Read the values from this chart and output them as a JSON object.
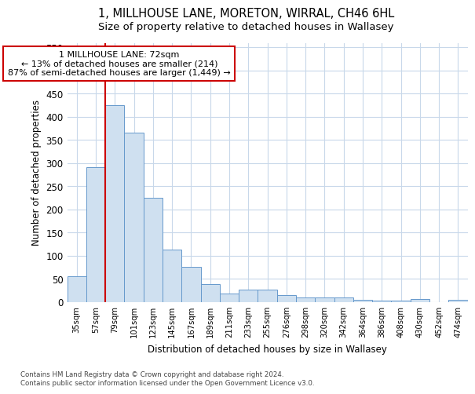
{
  "title": "1, MILLHOUSE LANE, MORETON, WIRRAL, CH46 6HL",
  "subtitle": "Size of property relative to detached houses in Wallasey",
  "xlabel": "Distribution of detached houses by size in Wallasey",
  "ylabel": "Number of detached properties",
  "categories": [
    "35sqm",
    "57sqm",
    "79sqm",
    "101sqm",
    "123sqm",
    "145sqm",
    "167sqm",
    "189sqm",
    "211sqm",
    "233sqm",
    "255sqm",
    "276sqm",
    "298sqm",
    "320sqm",
    "342sqm",
    "364sqm",
    "386sqm",
    "408sqm",
    "430sqm",
    "452sqm",
    "474sqm"
  ],
  "values": [
    55,
    291,
    425,
    365,
    225,
    113,
    76,
    39,
    17,
    27,
    27,
    14,
    9,
    9,
    10,
    5,
    3,
    2,
    6,
    0,
    4
  ],
  "bar_color": "#cfe0f0",
  "bar_edge_color": "#6699cc",
  "bar_edge_width": 0.7,
  "marker_index": 2,
  "marker_line_color": "#cc0000",
  "annotation_line1": "1 MILLHOUSE LANE: 72sqm",
  "annotation_line2": "← 13% of detached houses are smaller (214)",
  "annotation_line3": "87% of semi-detached houses are larger (1,449) →",
  "annotation_box_color": "#ffffff",
  "annotation_box_edge": "#cc0000",
  "ylim": [
    0,
    560
  ],
  "yticks": [
    0,
    50,
    100,
    150,
    200,
    250,
    300,
    350,
    400,
    450,
    500,
    550
  ],
  "footnote1": "Contains HM Land Registry data © Crown copyright and database right 2024.",
  "footnote2": "Contains public sector information licensed under the Open Government Licence v3.0.",
  "title_fontsize": 10.5,
  "subtitle_fontsize": 9.5,
  "bg_color": "#ffffff",
  "grid_color": "#c8d8ea"
}
